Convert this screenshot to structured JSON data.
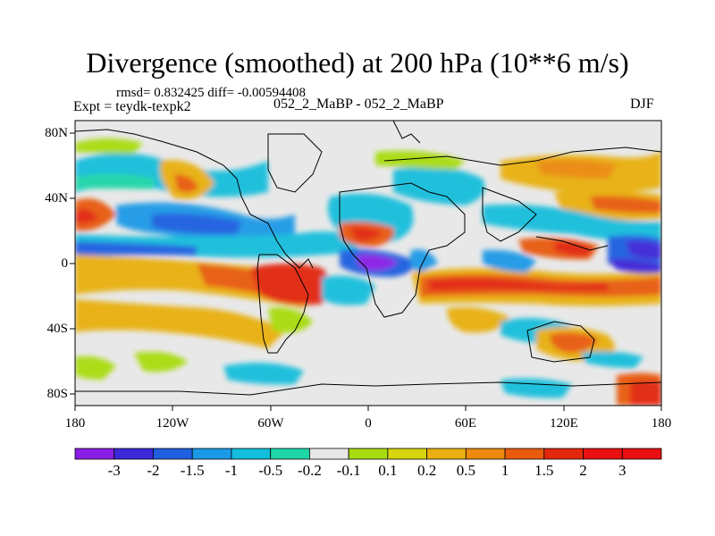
{
  "title": "Divergence (smoothed) at 200 hPa (10**6 m/s)",
  "stats_line": "rmsd= 0.832425  diff= -0.00594408",
  "experiment": "Expt = teydk-texpk2",
  "comparison": "052_2_MaBP - 052_2_MaBP",
  "season": "DJF",
  "lat_labels": [
    "80N",
    "40N",
    "0",
    "40S",
    "80S"
  ],
  "lon_labels": [
    "180",
    "120W",
    "60W",
    "0",
    "60E",
    "120E",
    "180"
  ],
  "colorbar": {
    "labels": [
      "-3",
      "-2",
      "-1.5",
      "-1",
      "-0.5",
      "-0.2",
      "-0.1",
      "0.1",
      "0.2",
      "0.5",
      "1",
      "1.5",
      "2",
      "3"
    ],
    "colors": [
      "#8a1ee6",
      "#3c28d8",
      "#1f5fe0",
      "#1a9ae6",
      "#12bedc",
      "#1fd6a8",
      "#e8e8e8",
      "#a8dc10",
      "#d8d40e",
      "#e8b010",
      "#ec8a10",
      "#e85a0e",
      "#e2280c",
      "#e81010"
    ]
  }
}
